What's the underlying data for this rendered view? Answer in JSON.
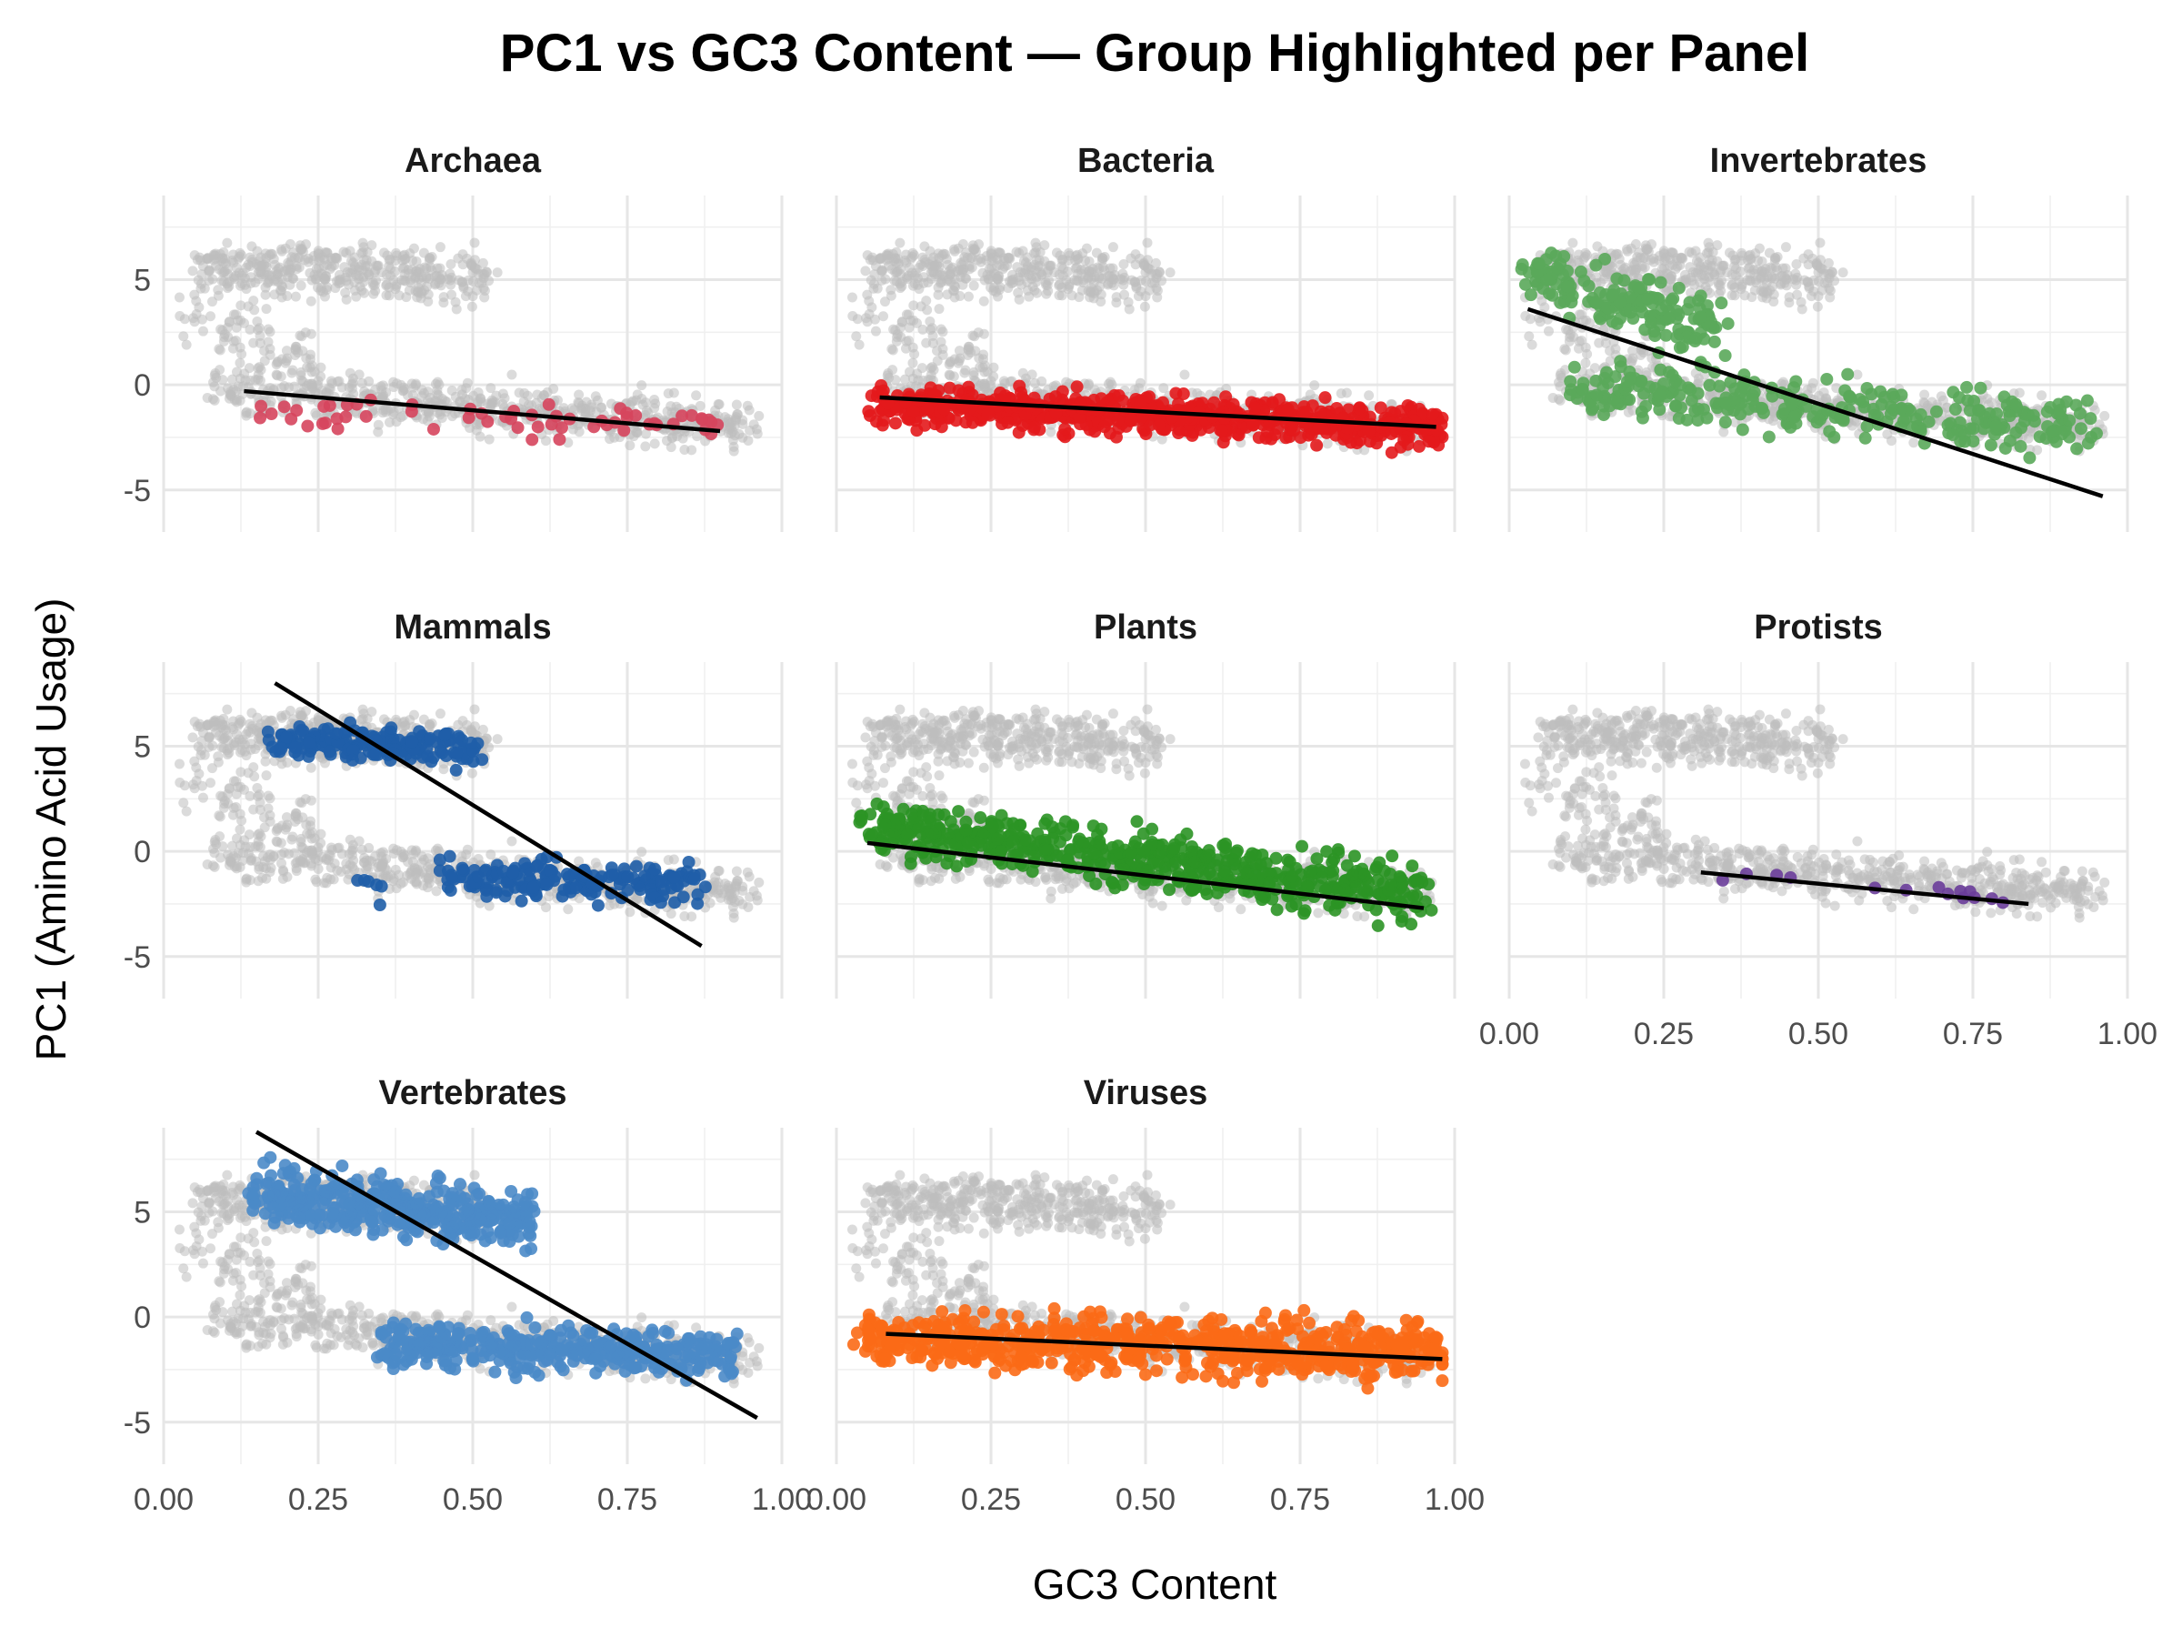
{
  "chart_data": {
    "type": "scatter",
    "title": "PC1 vs GC3 Content — Group Highlighted per Panel",
    "xlabel": "GC3 Content",
    "ylabel": "PC1 (Amino Acid Usage)",
    "xlim": [
      0,
      1
    ],
    "ylim": [
      -7,
      9
    ],
    "x_ticks": [
      "0.00",
      "0.25",
      "0.50",
      "0.75",
      "1.00"
    ],
    "y_ticks": [
      "-5",
      "0",
      "5"
    ],
    "background_color": "#bdbdbd",
    "fit_line_color": "#000000",
    "grid": true,
    "layout": "facet_wrap 3 columns",
    "panels": [
      {
        "group": "Archaea",
        "color": "#d6455d",
        "fit": {
          "x": [
            0.13,
            0.9
          ],
          "y": [
            -0.3,
            -2.2
          ]
        },
        "clusters": [
          {
            "x": [
              0.13,
              0.9
            ],
            "y": [
              -1.2,
              -2.0
            ],
            "spread": 0.6,
            "n": 60
          }
        ]
      },
      {
        "group": "Bacteria",
        "color": "#e31a1c",
        "fit": {
          "x": [
            0.07,
            0.97
          ],
          "y": [
            -0.6,
            -2.0
          ]
        },
        "clusters": [
          {
            "x": [
              0.06,
              0.98
            ],
            "y": [
              -0.9,
              -2.1
            ],
            "spread": 0.7,
            "n": 700
          }
        ]
      },
      {
        "group": "Invertebrates",
        "color": "#5aa85a",
        "fit": {
          "x": [
            0.03,
            0.96
          ],
          "y": [
            3.6,
            -5.3
          ]
        },
        "clusters": [
          {
            "x": [
              0.03,
              0.35
            ],
            "y": [
              5.2,
              2.5
            ],
            "spread": 1.2,
            "n": 180
          },
          {
            "x": [
              0.1,
              0.95
            ],
            "y": [
              -0.3,
              -2.0
            ],
            "spread": 1.0,
            "n": 300
          }
        ]
      },
      {
        "group": "Mammals",
        "color": "#1f5ea8",
        "fit": {
          "x": [
            0.18,
            0.87
          ],
          "y": [
            8.0,
            -4.5
          ]
        },
        "clusters": [
          {
            "x": [
              0.17,
              0.53
            ],
            "y": [
              5.3,
              4.8
            ],
            "spread": 0.6,
            "n": 180
          },
          {
            "x": [
              0.45,
              0.88
            ],
            "y": [
              -1.3,
              -1.5
            ],
            "spread": 0.7,
            "n": 180
          },
          {
            "x": [
              0.28,
              0.35
            ],
            "y": [
              -0.5,
              -2.3
            ],
            "spread": 0.8,
            "n": 6
          }
        ]
      },
      {
        "group": "Plants",
        "color": "#2b9425",
        "fit": {
          "x": [
            0.05,
            0.95
          ],
          "y": [
            0.4,
            -2.7
          ]
        },
        "clusters": [
          {
            "x": [
              0.04,
              0.96
            ],
            "y": [
              1.3,
              -2.2
            ],
            "spread": 1.0,
            "n": 600
          }
        ]
      },
      {
        "group": "Protists",
        "color": "#6a3d9a",
        "fit": {
          "x": [
            0.31,
            0.84
          ],
          "y": [
            -1.0,
            -2.5
          ]
        },
        "clusters": [
          {
            "x": [
              0.31,
              0.84
            ],
            "y": [
              -1.1,
              -2.3
            ],
            "spread": 0.3,
            "n": 14
          }
        ]
      },
      {
        "group": "Vertebrates",
        "color": "#4a8ac8",
        "fit": {
          "x": [
            0.15,
            0.96
          ],
          "y": [
            8.8,
            -4.8
          ]
        },
        "clusters": [
          {
            "x": [
              0.15,
              0.6
            ],
            "y": [
              5.8,
              4.5
            ],
            "spread": 1.0,
            "n": 400
          },
          {
            "x": [
              0.35,
              0.92
            ],
            "y": [
              -1.2,
              -1.8
            ],
            "spread": 0.8,
            "n": 350
          }
        ]
      },
      {
        "group": "Viruses",
        "color": "#fb6a16",
        "fit": {
          "x": [
            0.08,
            0.98
          ],
          "y": [
            -0.8,
            -2.0
          ]
        },
        "clusters": [
          {
            "x": [
              0.04,
              0.98
            ],
            "y": [
              -1.0,
              -1.7
            ],
            "spread": 1.0,
            "n": 700
          }
        ]
      }
    ],
    "background_clusters": [
      {
        "x": [
          0.05,
          0.52
        ],
        "y": [
          5.5,
          5.2
        ],
        "spread": 1.0,
        "n": 420
      },
      {
        "x": [
          0.08,
          0.96
        ],
        "y": [
          -0.2,
          -2.0
        ],
        "spread": 0.9,
        "n": 620
      },
      {
        "x": [
          0.03,
          0.25
        ],
        "y": [
          3.5,
          1.0
        ],
        "spread": 1.2,
        "n": 90
      }
    ]
  }
}
